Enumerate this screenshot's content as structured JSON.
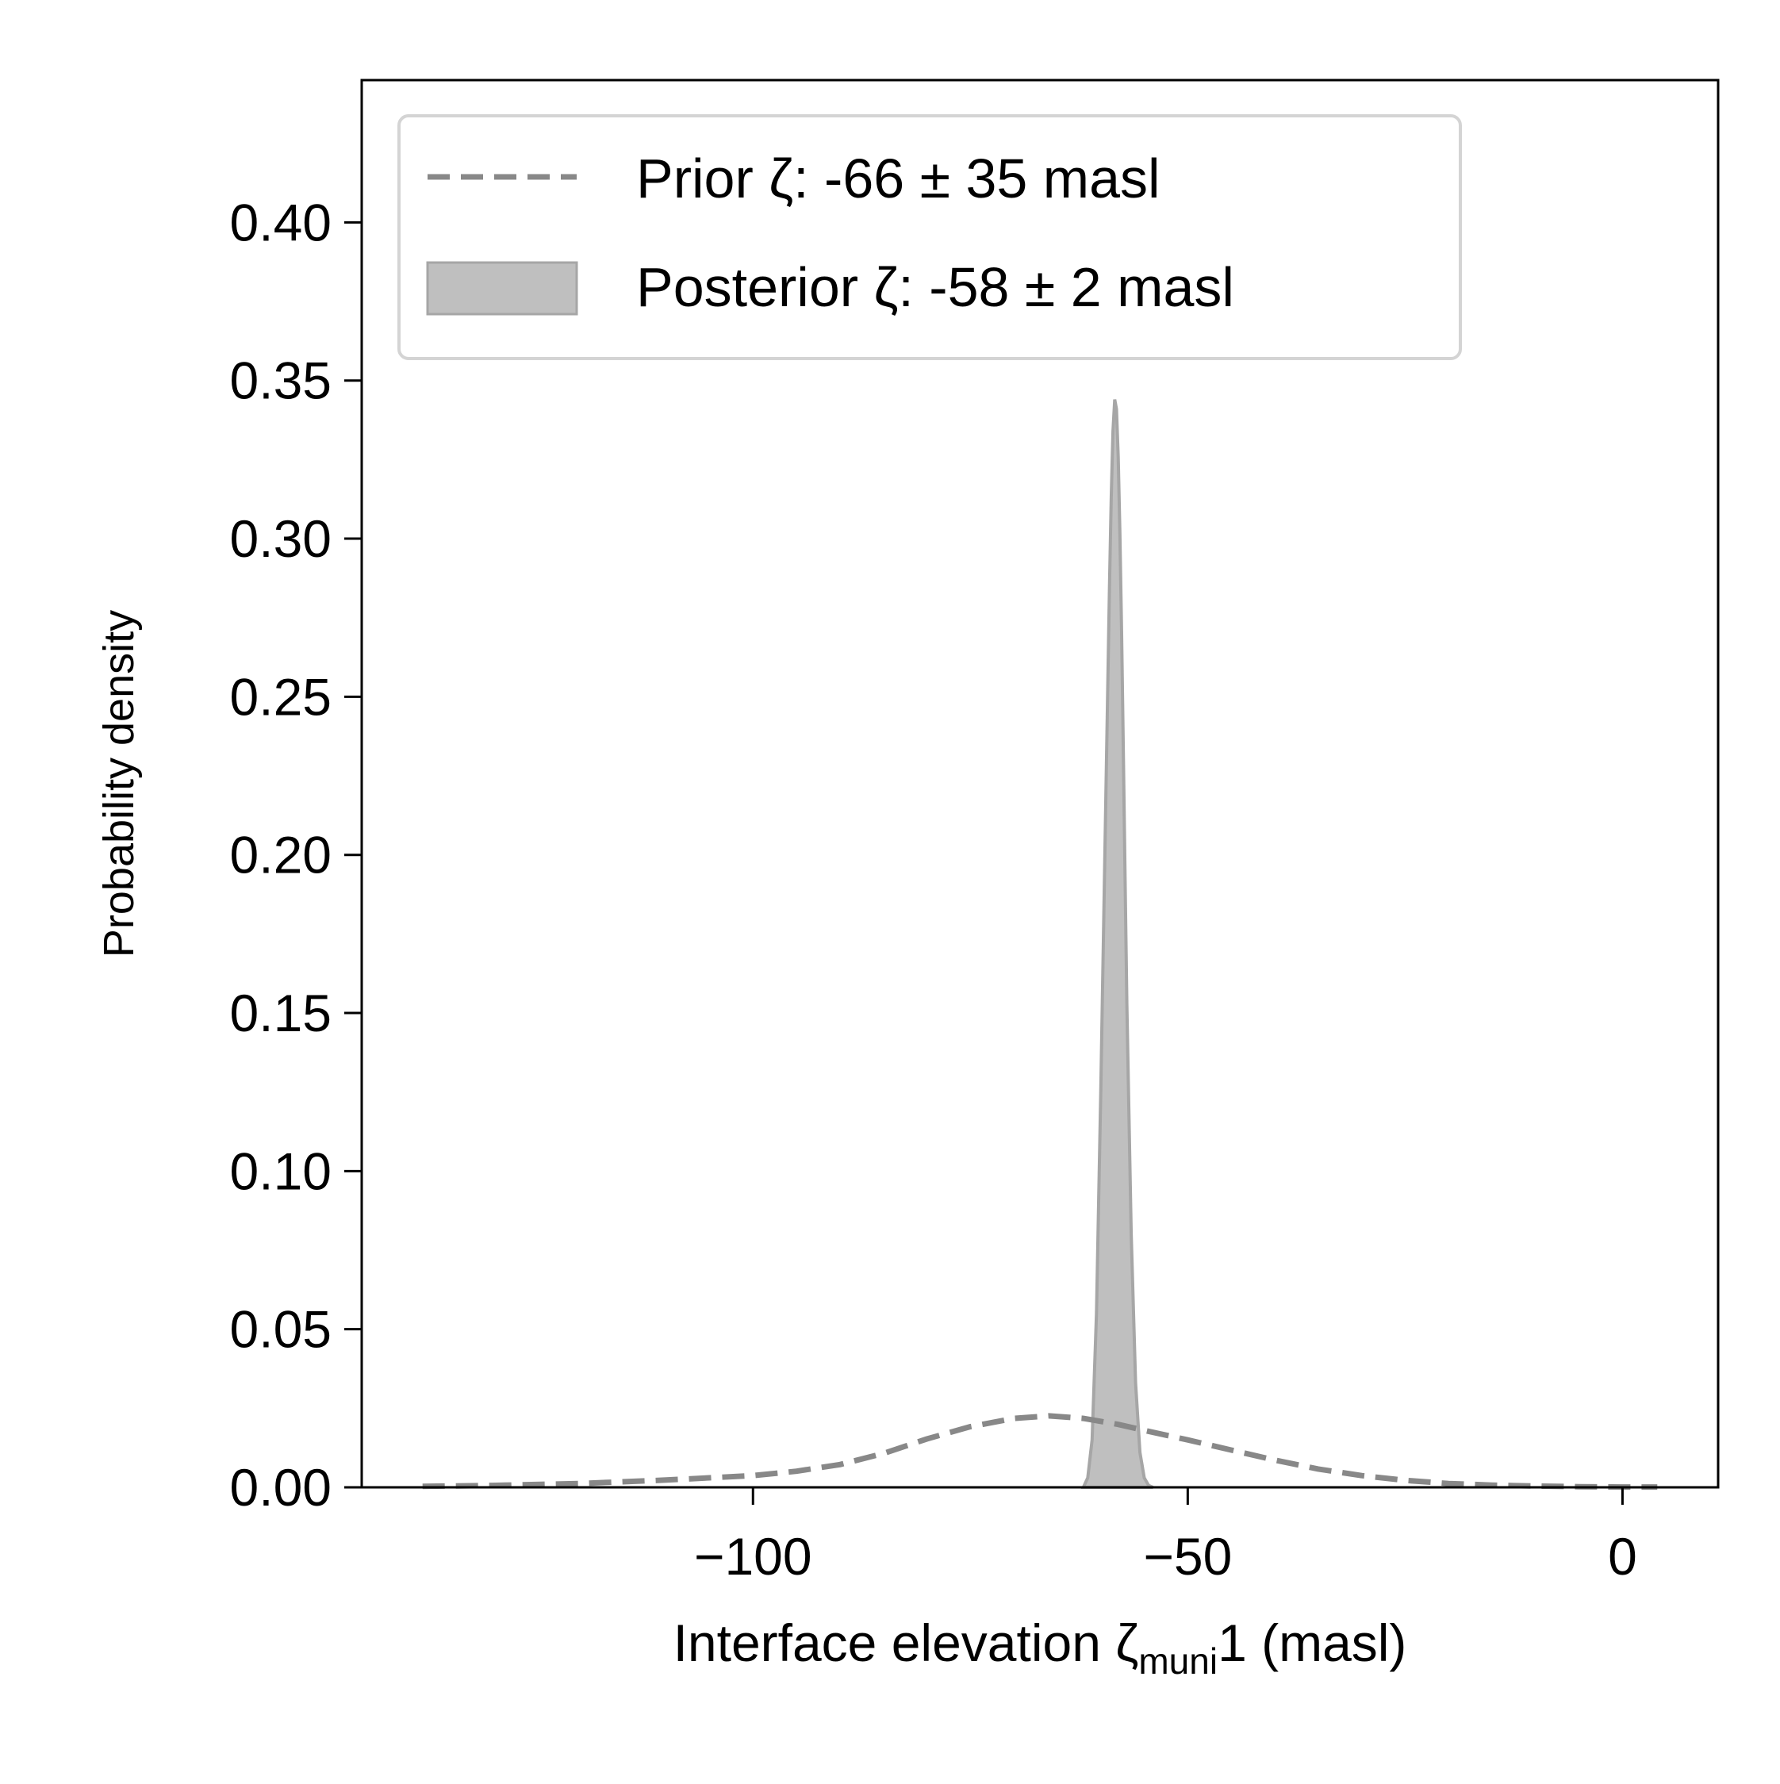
{
  "chart_data": {
    "type": "area",
    "xlabel_parts": {
      "main": "Interface elevation ζ",
      "subscript": "muni",
      "suffix": "1 (masl)"
    },
    "ylabel": "Probability density",
    "xlim": [
      -145,
      11
    ],
    "ylim": [
      0,
      0.445
    ],
    "xticks": [
      -100,
      -50,
      0
    ],
    "xtick_labels": [
      "−100",
      "−50",
      "0"
    ],
    "yticks": [
      0,
      0.05,
      0.1,
      0.15,
      0.2,
      0.25,
      0.3,
      0.35,
      0.4
    ],
    "ytick_labels": [
      "0.00",
      "0.05",
      "0.10",
      "0.15",
      "0.20",
      "0.25",
      "0.30",
      "0.35",
      "0.40"
    ],
    "grid": false,
    "legend_position": "upper-left",
    "series": [
      {
        "name": "Prior ζ: -66 ± 35 masl",
        "kind": "dashed-line",
        "color": "#888888",
        "x": [
          -138,
          -130,
          -120,
          -110,
          -100,
          -95,
          -90,
          -85,
          -80,
          -75,
          -70,
          -66,
          -62,
          -58,
          -55,
          -50,
          -45,
          -40,
          -35,
          -30,
          -25,
          -20,
          -15,
          -10,
          -5,
          0,
          4
        ],
        "y": [
          0.0003,
          0.0006,
          0.0012,
          0.0023,
          0.0037,
          0.0051,
          0.0072,
          0.0107,
          0.0153,
          0.0192,
          0.0218,
          0.0226,
          0.0218,
          0.0199,
          0.018,
          0.015,
          0.0118,
          0.0086,
          0.0058,
          0.0037,
          0.0022,
          0.0012,
          0.0007,
          0.0004,
          0.0002,
          0.0001,
          0.0001
        ]
      },
      {
        "name": "Posterior ζ: -58 ± 2 masl",
        "kind": "filled-area",
        "color": "#bfbfbf",
        "edge_color": "#a6a6a6",
        "x": [
          -62.0,
          -61.5,
          -61.0,
          -60.5,
          -60.0,
          -59.5,
          -59.0,
          -58.8,
          -58.6,
          -58.4,
          -58.2,
          -58.0,
          -57.8,
          -57.6,
          -57.4,
          -57.2,
          -57.0,
          -56.5,
          -56.0,
          -55.5,
          -55.0,
          -54.5,
          -54.0
        ],
        "y": [
          0.0,
          0.003,
          0.015,
          0.055,
          0.125,
          0.205,
          0.285,
          0.313,
          0.334,
          0.344,
          0.341,
          0.326,
          0.302,
          0.27,
          0.232,
          0.192,
          0.153,
          0.08,
          0.033,
          0.011,
          0.003,
          0.0006,
          0.0
        ]
      }
    ]
  }
}
